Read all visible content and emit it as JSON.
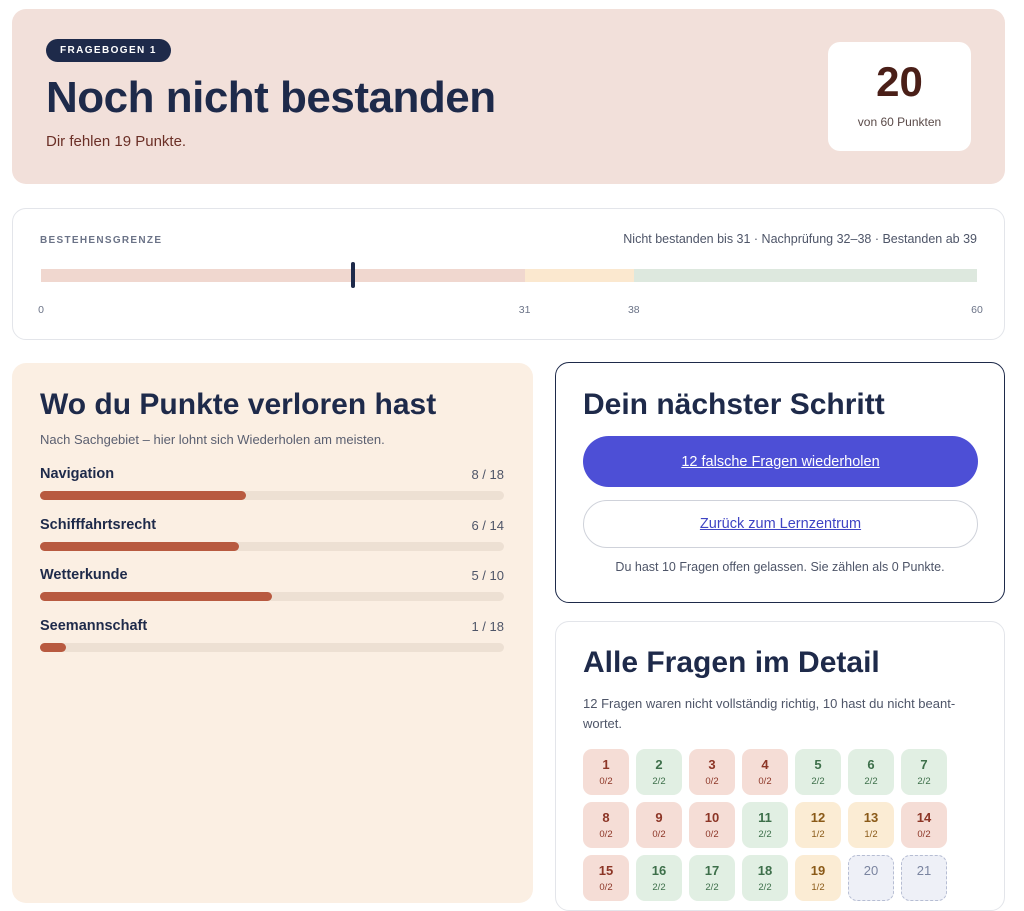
{
  "hero": {
    "badge": "FRAGEBOGEN 1",
    "title": "Noch nicht bestanden",
    "subtitle": "Dir fehlen 19 Punkte.",
    "score": "20",
    "score_of": "von 60 Punkten"
  },
  "threshold": {
    "label": "BESTEHENSGRENZE",
    "legend": "Nicht bestanden bis 31 · Nachprüfung 32–38 · Bestanden ab 39",
    "max": 60,
    "score": 20,
    "fail_until": 31,
    "recheck_until": 38,
    "ticks": [
      "0",
      "31",
      "38",
      "60"
    ],
    "colors": {
      "fail": "#f0d7cf",
      "recheck": "#fbe8cf",
      "pass": "#dde8de",
      "marker": "#1e2a4a"
    }
  },
  "loss": {
    "title": "Wo du Punkte verloren hast",
    "subtitle": "Nach Sachgebiet – hier lohnt sich Wiederholen am meisten.",
    "categories": [
      {
        "name": "Navigation",
        "score": "8 / 18",
        "earned": 8,
        "total": 18
      },
      {
        "name": "Schifffahrtsrecht",
        "score": "6 / 14",
        "earned": 6,
        "total": 14
      },
      {
        "name": "Wetterkunde",
        "score": "5 / 10",
        "earned": 5,
        "total": 10
      },
      {
        "name": "Seemannschaft",
        "score": "1 / 18",
        "earned": 1,
        "total": 18
      }
    ]
  },
  "next": {
    "title": "Dein nächster Schritt",
    "primary_label": "12 falsche Fragen wiederholen",
    "secondary_label": "Zurück zum Lernzentrum",
    "note": "Du hast 10 Fragen offen gelassen. Sie zählen als 0 Punkte."
  },
  "detail": {
    "title": "Alle Fragen im Detail",
    "subtitle": "12 Fragen waren nicht vollständig richtig, 10 hast du nicht beant­wortet.",
    "questions": [
      {
        "num": "1",
        "pts": "0/2",
        "status": "wrong"
      },
      {
        "num": "2",
        "pts": "2/2",
        "status": "right"
      },
      {
        "num": "3",
        "pts": "0/2",
        "status": "wrong"
      },
      {
        "num": "4",
        "pts": "0/2",
        "status": "wrong"
      },
      {
        "num": "5",
        "pts": "2/2",
        "status": "right"
      },
      {
        "num": "6",
        "pts": "2/2",
        "status": "right"
      },
      {
        "num": "7",
        "pts": "2/2",
        "status": "right"
      },
      {
        "num": "8",
        "pts": "0/2",
        "status": "wrong"
      },
      {
        "num": "9",
        "pts": "0/2",
        "status": "wrong"
      },
      {
        "num": "10",
        "pts": "0/2",
        "status": "wrong"
      },
      {
        "num": "11",
        "pts": "2/2",
        "status": "right"
      },
      {
        "num": "12",
        "pts": "1/2",
        "status": "partial"
      },
      {
        "num": "13",
        "pts": "1/2",
        "status": "partial"
      },
      {
        "num": "14",
        "pts": "0/2",
        "status": "wrong"
      },
      {
        "num": "15",
        "pts": "0/2",
        "status": "wrong"
      },
      {
        "num": "16",
        "pts": "2/2",
        "status": "right"
      },
      {
        "num": "17",
        "pts": "2/2",
        "status": "right"
      },
      {
        "num": "18",
        "pts": "2/2",
        "status": "right"
      },
      {
        "num": "19",
        "pts": "1/2",
        "status": "partial"
      },
      {
        "num": "20",
        "pts": "",
        "status": "open"
      },
      {
        "num": "21",
        "pts": "",
        "status": "open"
      }
    ]
  }
}
